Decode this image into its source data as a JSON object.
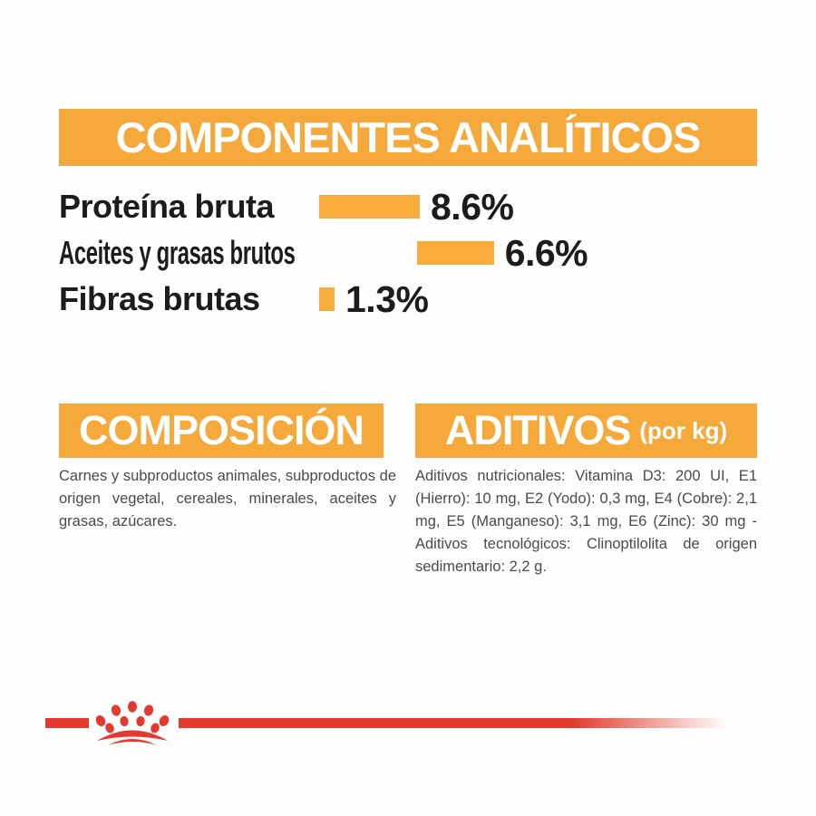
{
  "colors": {
    "gold": "#F5A93B",
    "red": "#E23A2E",
    "heading_text": "#ffffff",
    "label_text": "#1c1c1c",
    "body_text": "#4b4b4b"
  },
  "analytical_components": {
    "title": "COMPONENTES ANALÍTICOS",
    "rows": [
      {
        "label": "Proteína bruta",
        "value_label": "8.6%",
        "percent": 8.6
      },
      {
        "label": "Aceites y grasas brutos",
        "value_label": "6.6%",
        "percent": 6.6
      },
      {
        "label": "Fibras brutas",
        "value_label": "1.3%",
        "percent": 1.3
      }
    ]
  },
  "composition": {
    "title": "COMPOSICIÓN",
    "body": "Carnes y subproductos animales, subproductos de origen vegetal, cereales, minerales, aceites y grasas, azúcares."
  },
  "additives": {
    "title": "ADITIVOS",
    "title_suffix": "(por kg)",
    "body": "Aditivos nutricionales: Vitamina D3: 200 UI, E1 (Hierro): 10 mg, E2 (Yodo): 0,3 mg, E4 (Cobre): 2,1 mg, E5 (Manganeso): 3,1 mg, E6 (Zinc): 30 mg - Aditivos tecnológicos: Clinoptilolita de origen sedimentario: 2,2 g."
  },
  "footer": {
    "brand_logo": "royal-canin-crown"
  },
  "chart_data": {
    "type": "bar",
    "orientation": "horizontal",
    "title": "COMPONENTES ANALÍTICOS",
    "categories": [
      "Proteína bruta",
      "Aceites y grasas brutos",
      "Fibras brutas"
    ],
    "values": [
      8.6,
      6.6,
      1.3
    ],
    "unit": "%",
    "data_labels": [
      "8.6%",
      "6.6%",
      "1.3%"
    ],
    "bar_color": "#F8AC3B",
    "xlim": [
      0,
      10
    ],
    "grid": false,
    "legend": false
  }
}
